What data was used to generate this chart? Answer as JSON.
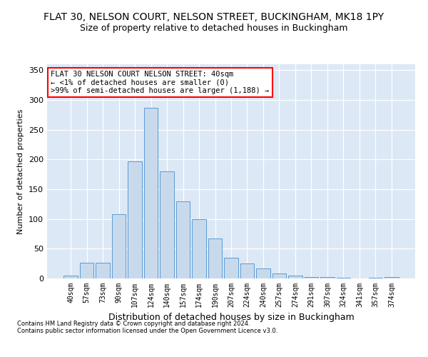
{
  "title": "FLAT 30, NELSON COURT, NELSON STREET, BUCKINGHAM, MK18 1PY",
  "subtitle": "Size of property relative to detached houses in Buckingham",
  "xlabel": "Distribution of detached houses by size in Buckingham",
  "ylabel": "Number of detached properties",
  "categories": [
    "40sqm",
    "57sqm",
    "73sqm",
    "90sqm",
    "107sqm",
    "124sqm",
    "140sqm",
    "157sqm",
    "174sqm",
    "190sqm",
    "207sqm",
    "224sqm",
    "240sqm",
    "257sqm",
    "274sqm",
    "291sqm",
    "307sqm",
    "324sqm",
    "341sqm",
    "357sqm",
    "374sqm"
  ],
  "values": [
    5,
    27,
    27,
    108,
    197,
    287,
    180,
    130,
    100,
    67,
    35,
    25,
    17,
    8,
    5,
    3,
    3,
    1,
    0,
    1,
    2
  ],
  "bar_color": "#c9d9ec",
  "bar_edge_color": "#5b9bd5",
  "annotation_box_text": "FLAT 30 NELSON COURT NELSON STREET: 40sqm\n← <1% of detached houses are smaller (0)\n>99% of semi-detached houses are larger (1,188) →",
  "ylim": [
    0,
    360
  ],
  "yticks": [
    0,
    50,
    100,
    150,
    200,
    250,
    300,
    350
  ],
  "footer_line1": "Contains HM Land Registry data © Crown copyright and database right 2024.",
  "footer_line2": "Contains public sector information licensed under the Open Government Licence v3.0.",
  "bg_color": "#dce8f5",
  "title_fontsize": 10,
  "subtitle_fontsize": 9,
  "xlabel_fontsize": 9,
  "ylabel_fontsize": 8,
  "tick_fontsize": 7,
  "annotation_fontsize": 7.5,
  "footer_fontsize": 6
}
